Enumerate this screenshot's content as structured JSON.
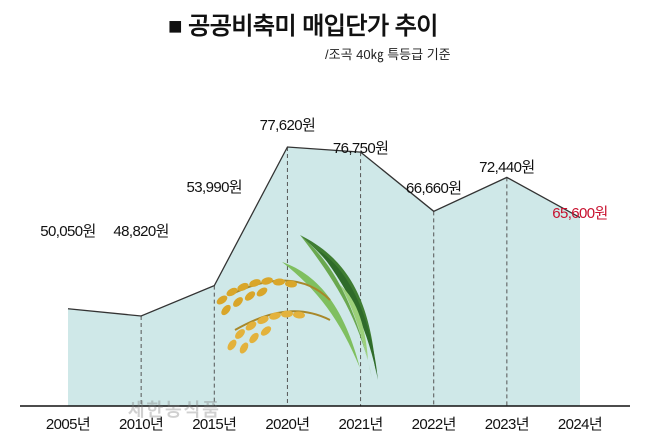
{
  "title": "■ 공공비축미 매입단가 추이",
  "subtitle": "/조곡 40㎏ 특등급 기준",
  "watermark": "세한농식품",
  "colors": {
    "area_fill": "#cfe8e8",
    "line": "#333333",
    "highlight": "#c8102e",
    "text": "#111111"
  },
  "chart_data": {
    "type": "area",
    "categories": [
      "2005년",
      "2010년",
      "2015년",
      "2020년",
      "2021년",
      "2022년",
      "2023년",
      "2024년"
    ],
    "values": [
      50050,
      48820,
      53990,
      77620,
      76750,
      66660,
      72440,
      65600
    ],
    "value_labels": [
      "50,050원",
      "48,820원",
      "53,990원",
      "77,620원",
      "76,750원",
      "66,660원",
      "72,440원",
      "65,600원"
    ],
    "highlight_index": 7,
    "title": "■ 공공비축미 매입단가 추이",
    "subtitle": "/조곡 40㎏ 특등급 기준",
    "xlabel": "",
    "ylabel": "",
    "grid": false,
    "legend": "none"
  }
}
